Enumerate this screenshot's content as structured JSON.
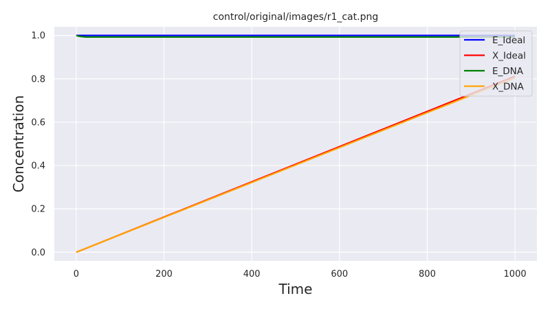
{
  "chart_data": {
    "type": "line",
    "title": "control/original/images/r1_cat.png",
    "xlabel": "Time",
    "ylabel": "Concentration",
    "xlim": [
      -50,
      1050
    ],
    "ylim": [
      -0.04,
      1.04
    ],
    "xticks": [
      0,
      200,
      400,
      600,
      800,
      1000
    ],
    "yticks": [
      0.0,
      0.2,
      0.4,
      0.6,
      0.8,
      1.0
    ],
    "xtick_labels": [
      "0",
      "200",
      "400",
      "600",
      "800",
      "1000"
    ],
    "ytick_labels": [
      "0.0",
      "0.2",
      "0.4",
      "0.6",
      "0.8",
      "1.0"
    ],
    "grid": true,
    "legend_position": "top-right",
    "series": [
      {
        "name": "E_Ideal",
        "color": "#0000ff",
        "x": [
          0,
          1000
        ],
        "y": [
          1.0,
          1.0
        ]
      },
      {
        "name": "X_Ideal",
        "color": "#ff0000",
        "x": [
          0,
          1000
        ],
        "y": [
          0.0,
          0.812
        ]
      },
      {
        "name": "E_DNA",
        "color": "#008000",
        "x": [
          0,
          5,
          10,
          20,
          40,
          1000
        ],
        "y": [
          1.0,
          0.997,
          0.995,
          0.993,
          0.993,
          0.993
        ]
      },
      {
        "name": "X_DNA",
        "color": "#ffa500",
        "x": [
          0,
          1000
        ],
        "y": [
          0.0,
          0.805
        ]
      }
    ]
  }
}
